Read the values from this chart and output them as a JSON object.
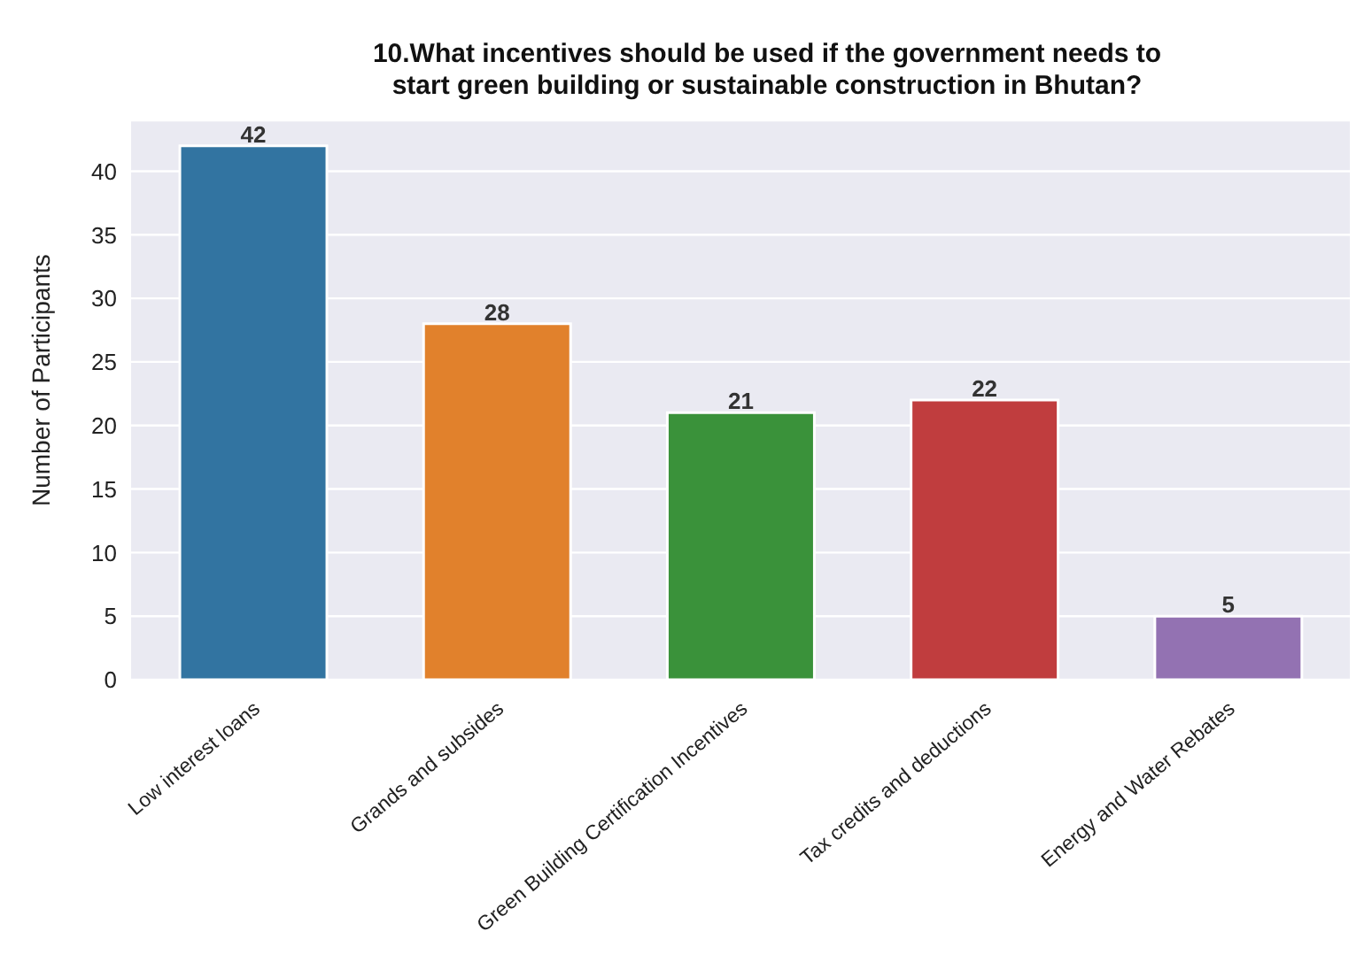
{
  "chart_data": {
    "type": "bar",
    "title": "10.What incentives should be used if the government needs to start green building or sustainable construction in Bhutan?",
    "ylabel": "Number of Participants",
    "categories": [
      "Low interest loans",
      "Grands and subsides",
      "Green Building Certification Incentives",
      "Tax credits and deductions",
      "Energy and Water Rebates"
    ],
    "values": [
      42,
      28,
      21,
      22,
      5
    ],
    "colors": [
      "#3274a1",
      "#e1812c",
      "#3a923a",
      "#c03d3e",
      "#9372b2"
    ],
    "ylim": [
      0,
      44
    ],
    "yticks": [
      0,
      5,
      10,
      15,
      20,
      25,
      30,
      35,
      40
    ],
    "grid": "y",
    "data_labels": true
  }
}
